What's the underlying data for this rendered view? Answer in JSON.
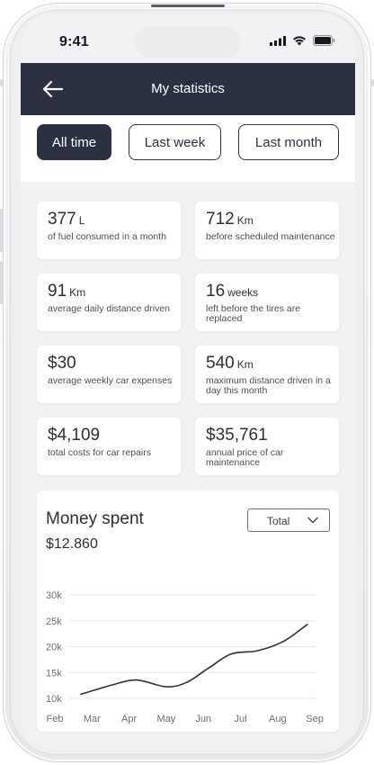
{
  "status_bar": {
    "time": "9:41"
  },
  "header": {
    "title": "My statistics",
    "back_icon": "arrow-left-icon"
  },
  "tabs": [
    {
      "label": "All time",
      "active": true
    },
    {
      "label": "Last week",
      "active": false
    },
    {
      "label": "Last month",
      "active": false
    }
  ],
  "stats": [
    {
      "value": "377",
      "unit": "L",
      "description": "of fuel consumed in a month"
    },
    {
      "value": "712",
      "unit": "Km",
      "description": "before scheduled maintenance"
    },
    {
      "value": "91",
      "unit": "Km",
      "description": "average daily distance driven"
    },
    {
      "value": "16",
      "unit": "weeks",
      "description": "left before the tires are replaced"
    },
    {
      "value": "$30",
      "unit": "",
      "description": "average weekly car expenses"
    },
    {
      "value": "540",
      "unit": "Km",
      "description": "maximum distance driven in a day this month"
    },
    {
      "value": "$4,109",
      "unit": "",
      "description": "total costs for car repairs"
    },
    {
      "value": "$35,761",
      "unit": "",
      "description": "annual price of car maintenance"
    }
  ],
  "money_spent": {
    "title": "Money spent",
    "amount": "$12.860",
    "filter": {
      "selected": "Total",
      "icon": "chevron-down-icon"
    }
  },
  "chart_data": {
    "type": "line",
    "categories": [
      "Feb",
      "Mar",
      "Apr",
      "May",
      "Jun",
      "Jul",
      "Aug",
      "Sep"
    ],
    "x": [
      0,
      1,
      2,
      3,
      4,
      5,
      6,
      7
    ],
    "series": [
      {
        "values": [
          {
            "x": 0.7,
            "y": 10800
          },
          {
            "x": 1.55,
            "y": 12600
          },
          {
            "x": 2.2,
            "y": 13550
          },
          {
            "x": 3.0,
            "y": 12250
          },
          {
            "x": 3.55,
            "y": 13100
          },
          {
            "x": 4.15,
            "y": 15900
          },
          {
            "x": 4.75,
            "y": 18600
          },
          {
            "x": 5.45,
            "y": 19200
          },
          {
            "x": 6.15,
            "y": 21000
          },
          {
            "x": 6.8,
            "y": 24300
          }
        ]
      }
    ],
    "yticks": [
      "10k",
      "15k",
      "20k",
      "25k",
      "30k"
    ],
    "ytick_values": [
      10000,
      15000,
      20000,
      25000,
      30000
    ],
    "ylim": [
      10000,
      30000
    ],
    "xlim": [
      0,
      7
    ],
    "grid": true,
    "line_color": "#2b3140",
    "grid_color": "#e6e6ea"
  },
  "colors": {
    "dark": "#2b3140",
    "background": "#f2f2f4",
    "card": "#ffffff"
  }
}
